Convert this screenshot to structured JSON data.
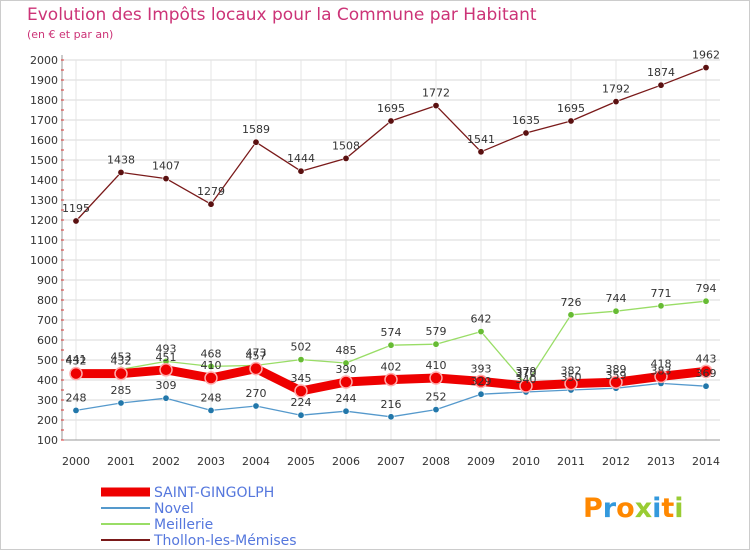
{
  "chart_data": {
    "type": "line",
    "title": "Evolution des Impôts locaux pour la Commune par Habitant",
    "subtitle": "(en € et par an)",
    "xlabel": "",
    "ylabel": "",
    "ylim": [
      100,
      2000
    ],
    "ytick_step": 100,
    "grid": true,
    "legend_position": "bottom-left",
    "categories": [
      "2000",
      "2001",
      "2002",
      "2003",
      "2004",
      "2005",
      "2006",
      "2007",
      "2008",
      "2009",
      "2010",
      "2011",
      "2012",
      "2013",
      "2014"
    ],
    "series": [
      {
        "name": "Thollon-les-Mémises",
        "color": "#7a1a1a",
        "values": [
          1195,
          1438,
          1407,
          1279,
          1589,
          1444,
          1508,
          1695,
          1772,
          1541,
          1635,
          1695,
          1792,
          1874,
          1962
        ]
      },
      {
        "name": "Meillerie",
        "color": "#99dd66",
        "values": [
          441,
          453,
          493,
          468,
          473,
          502,
          485,
          574,
          579,
          642,
          379,
          726,
          744,
          771,
          794
        ]
      },
      {
        "name": "Novel",
        "color": "#5599cc",
        "values": [
          248,
          285,
          309,
          248,
          270,
          224,
          244,
          216,
          252,
          329,
          340,
          350,
          359,
          383,
          369
        ]
      },
      {
        "name": "SAINT-GINGOLPH",
        "color": "#ee0000",
        "values": [
          432,
          432,
          451,
          410,
          457,
          345,
          390,
          402,
          410,
          393,
          370,
          382,
          389,
          418,
          443
        ]
      }
    ]
  },
  "brand": {
    "logo_text": "Proxiti"
  }
}
